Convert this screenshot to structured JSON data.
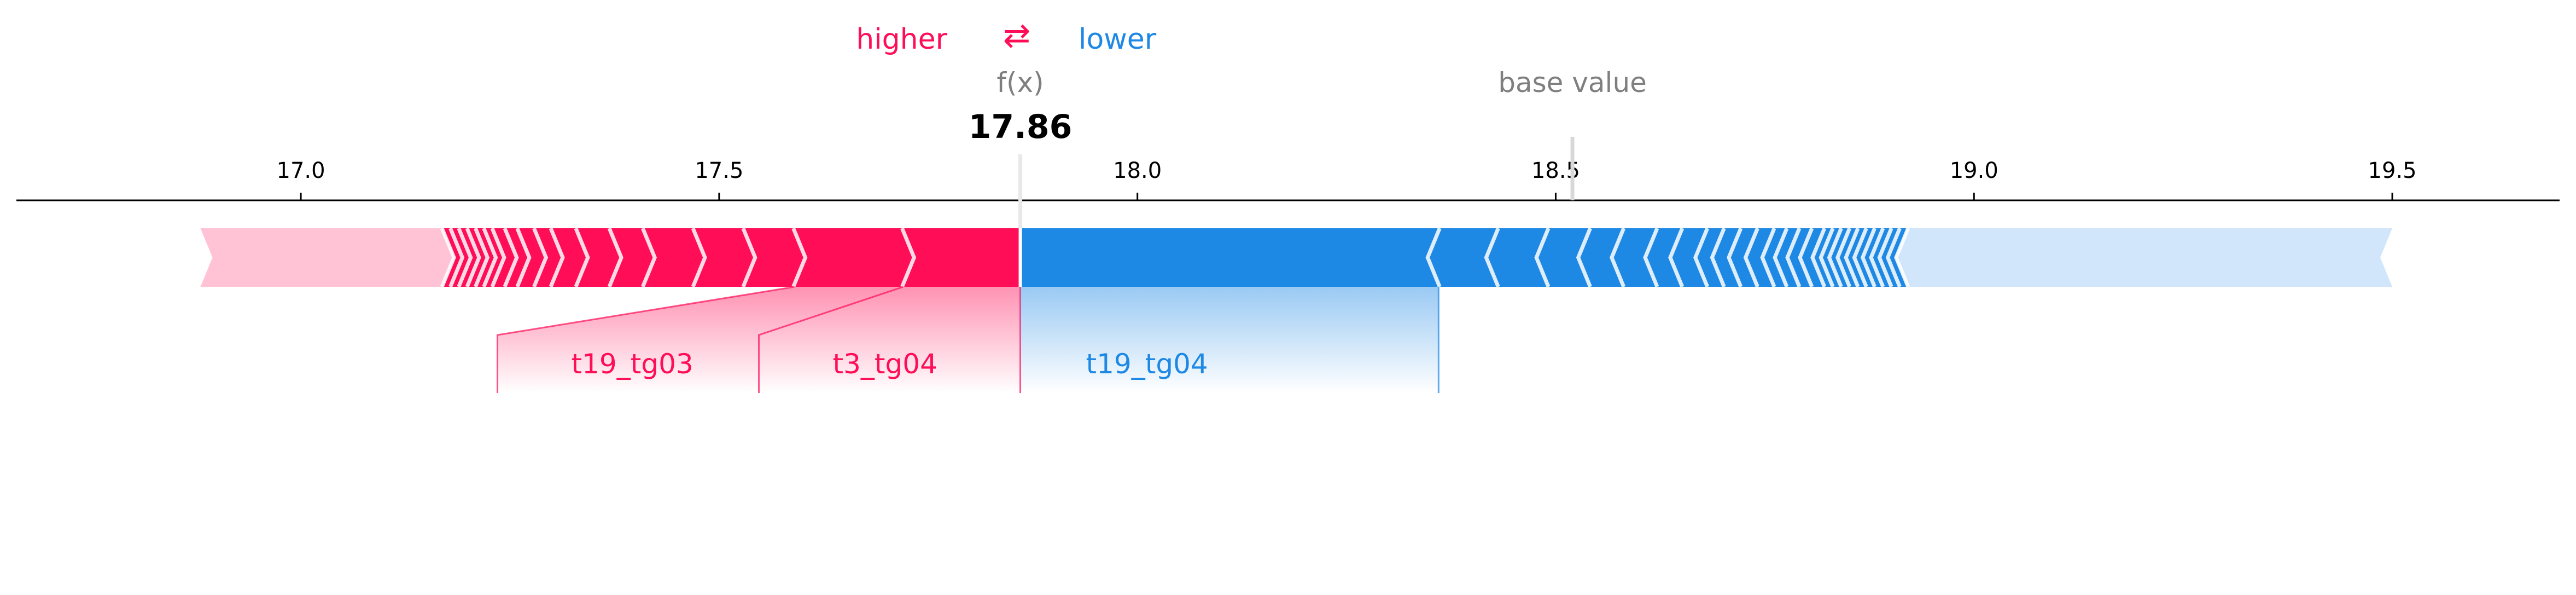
{
  "chart_data": {
    "type": "force",
    "legend": {
      "higher": "higher",
      "arrow": "⇄",
      "lower": "lower"
    },
    "output_label": "f(x)",
    "output_value": 17.86,
    "output_value_text": "17.86",
    "base_label": "base value",
    "base_value": 18.52,
    "xlim": [
      16.66,
      19.7
    ],
    "ticks": [
      17.0,
      17.5,
      18.0,
      18.5,
      19.0,
      19.5
    ],
    "tick_labels": [
      "17.0",
      "17.5",
      "18.0",
      "18.5",
      "19.0",
      "19.5"
    ],
    "positive": {
      "color": "#ff0d57",
      "light_color": "#ffc3d5",
      "range": [
        16.88,
        17.86
      ],
      "boundaries": [
        17.86,
        17.72,
        17.59,
        17.53,
        17.47,
        17.41,
        17.37,
        17.33,
        17.3,
        17.28,
        17.26,
        17.245,
        17.23,
        17.22,
        17.21,
        17.2,
        17.19,
        17.18,
        17.17
      ],
      "light_start": 17.17
    },
    "negative": {
      "color": "#1e88e5",
      "light_color": "#d1e6fa",
      "range": [
        17.86,
        19.5
      ],
      "boundaries": [
        17.86,
        18.36,
        18.43,
        18.49,
        18.54,
        18.58,
        18.62,
        18.65,
        18.68,
        18.7,
        18.72,
        18.74,
        18.76,
        18.775,
        18.79,
        18.805,
        18.82,
        18.83,
        18.84,
        18.85,
        18.86,
        18.87,
        18.88,
        18.89,
        18.9,
        18.91
      ],
      "light_start": 18.92
    },
    "feature_labels": [
      {
        "name": "t19_tg03",
        "side": "positive",
        "start": 17.72,
        "end": 17.59
      },
      {
        "name": "t3_tg04",
        "side": "positive",
        "start": 17.86,
        "end": 17.72
      },
      {
        "name": "t19_tg04",
        "side": "negative",
        "start": 17.86,
        "end": 18.36
      }
    ]
  }
}
